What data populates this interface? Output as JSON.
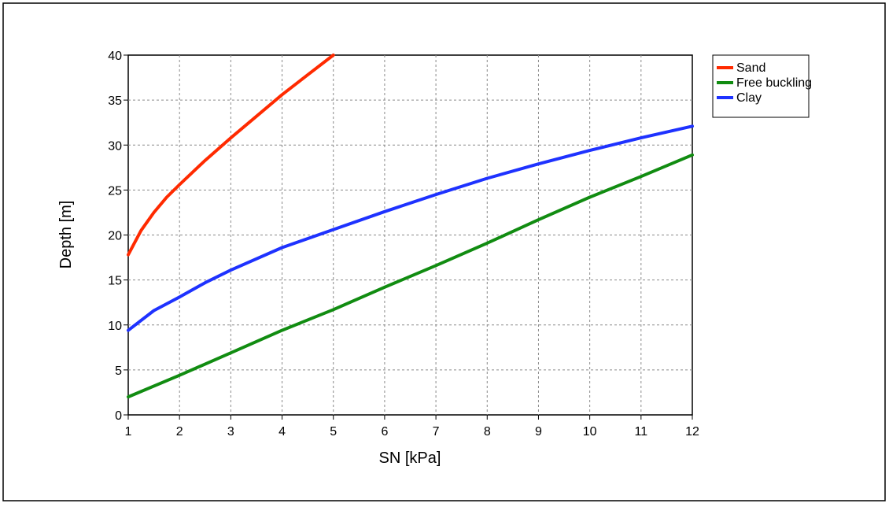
{
  "chart_data": {
    "type": "line",
    "title": "",
    "xlabel": "SN [kPa]",
    "ylabel": "Depth [m]",
    "xlim": [
      1,
      12
    ],
    "ylim": [
      0,
      40
    ],
    "x_ticks": [
      1,
      2,
      3,
      4,
      5,
      6,
      7,
      8,
      9,
      10,
      11,
      12
    ],
    "y_ticks": [
      0,
      5,
      10,
      15,
      20,
      25,
      30,
      35,
      40
    ],
    "grid": true,
    "legend_position": "outside-right",
    "series": [
      {
        "name": "Sand",
        "color": "#ff2a00",
        "x": [
          1,
          1.25,
          1.5,
          1.75,
          2,
          2.5,
          3,
          3.5,
          4,
          4.5,
          5
        ],
        "y": [
          17.8,
          20.5,
          22.5,
          24.2,
          25.6,
          28.3,
          30.8,
          33.2,
          35.6,
          37.8,
          40
        ]
      },
      {
        "name": "Free buckling",
        "color": "#118c11",
        "x": [
          1,
          2,
          3,
          4,
          5,
          6,
          7,
          8,
          9,
          10,
          11,
          12
        ],
        "y": [
          2.0,
          4.4,
          6.9,
          9.4,
          11.7,
          14.2,
          16.6,
          19.1,
          21.7,
          24.2,
          26.5,
          28.9
        ]
      },
      {
        "name": "Clay",
        "color": "#1e32ff",
        "x": [
          1,
          1.5,
          2,
          2.5,
          3,
          4,
          5,
          6,
          7,
          8,
          9,
          10,
          11,
          12
        ],
        "y": [
          9.4,
          11.6,
          13.1,
          14.7,
          16.1,
          18.6,
          20.6,
          22.6,
          24.5,
          26.3,
          27.9,
          29.4,
          30.8,
          32.1
        ]
      }
    ]
  }
}
